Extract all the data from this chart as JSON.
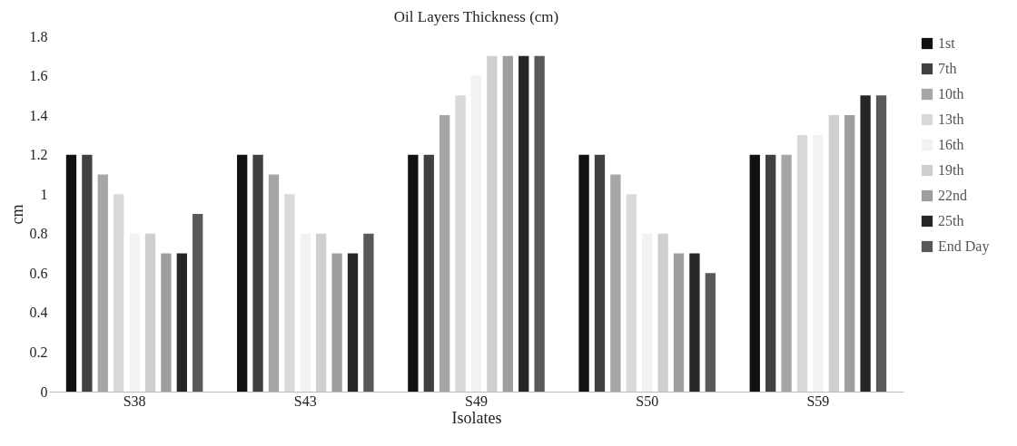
{
  "chart_data": {
    "type": "bar",
    "title": "Oil Layers Thickness (cm)",
    "xlabel": "Isolates",
    "ylabel": "cm",
    "categories": [
      "S38",
      "S43",
      "S49",
      "S50",
      "S59"
    ],
    "series": [
      {
        "name": "1st",
        "color": "#111111",
        "values": [
          1.2,
          1.2,
          1.2,
          1.2,
          1.2
        ]
      },
      {
        "name": "7th",
        "color": "#404040",
        "values": [
          1.2,
          1.2,
          1.2,
          1.2,
          1.2
        ]
      },
      {
        "name": "10th",
        "color": "#a6a6a6",
        "values": [
          1.1,
          1.1,
          1.4,
          1.1,
          1.2
        ]
      },
      {
        "name": "13th",
        "color": "#d9d9d9",
        "values": [
          1.0,
          1.0,
          1.5,
          1.0,
          1.3
        ]
      },
      {
        "name": "16th",
        "color": "#f2f2f2",
        "values": [
          0.8,
          0.8,
          1.6,
          0.8,
          1.3
        ]
      },
      {
        "name": "19th",
        "color": "#cfcfcf",
        "values": [
          0.8,
          0.8,
          1.7,
          0.8,
          1.4
        ]
      },
      {
        "name": "22nd",
        "color": "#9e9e9e",
        "values": [
          0.7,
          0.7,
          1.7,
          0.7,
          1.4
        ]
      },
      {
        "name": "25th",
        "color": "#262626",
        "values": [
          0.7,
          0.7,
          1.7,
          0.7,
          1.5
        ]
      },
      {
        "name": "End Day",
        "color": "#595959",
        "values": [
          0.9,
          0.8,
          1.7,
          0.6,
          1.5
        ]
      }
    ],
    "ylim": [
      0,
      1.8
    ],
    "yticks": [
      0,
      0.2,
      0.4,
      0.6,
      0.8,
      1,
      1.2,
      1.4,
      1.6,
      1.8
    ],
    "grid": false,
    "legend": "right"
  }
}
